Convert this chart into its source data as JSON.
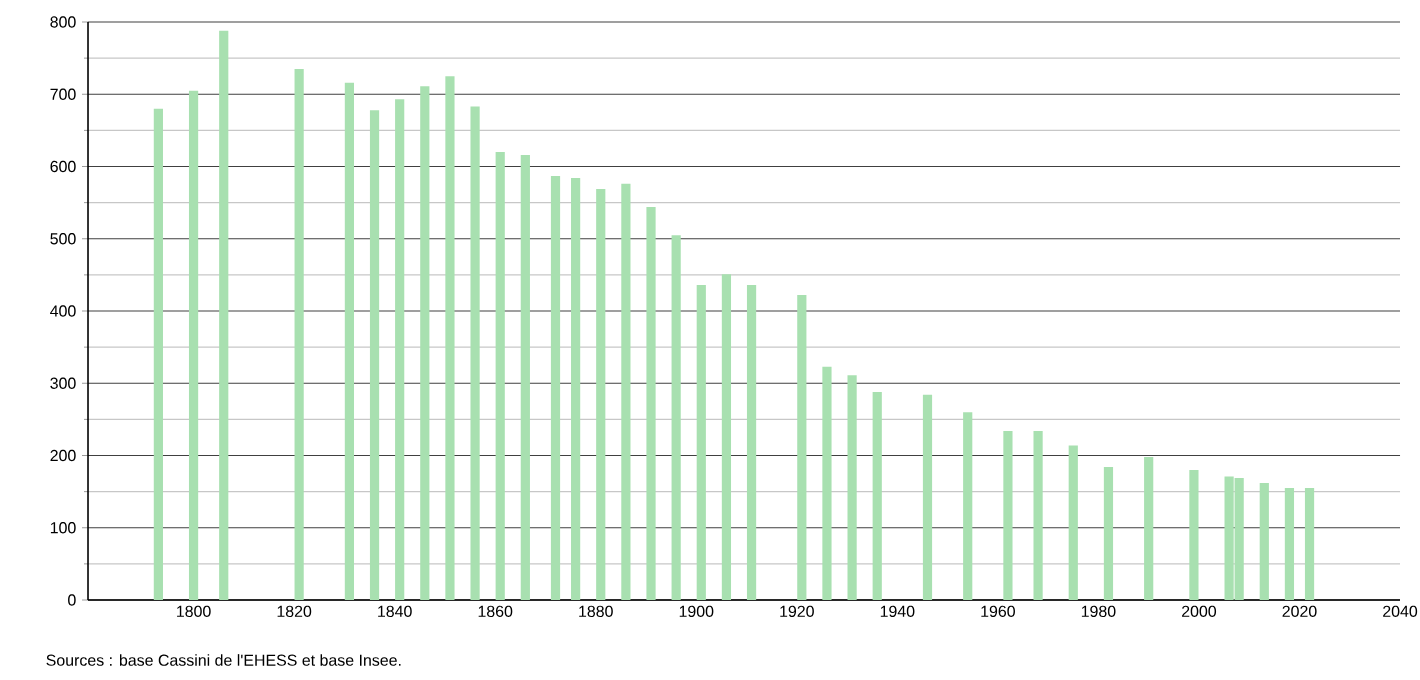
{
  "chart_data": {
    "type": "bar",
    "x": [
      1793,
      1800,
      1806,
      1821,
      1831,
      1836,
      1841,
      1846,
      1851,
      1856,
      1861,
      1866,
      1872,
      1876,
      1881,
      1886,
      1891,
      1896,
      1901,
      1906,
      1911,
      1921,
      1926,
      1931,
      1936,
      1946,
      1954,
      1962,
      1968,
      1975,
      1982,
      1990,
      1999,
      2006,
      2008,
      2013,
      2018,
      2022
    ],
    "values": [
      680,
      705,
      788,
      735,
      716,
      678,
      693,
      711,
      725,
      683,
      620,
      616,
      587,
      584,
      569,
      576,
      544,
      505,
      436,
      451,
      436,
      422,
      323,
      311,
      288,
      284,
      260,
      234,
      234,
      214,
      184,
      198,
      180,
      171,
      169,
      162,
      155,
      155
    ],
    "color": "#a8e0b0",
    "xlim": [
      1779,
      2040
    ],
    "xticks": [
      1800,
      1820,
      1840,
      1860,
      1880,
      1900,
      1920,
      1940,
      1960,
      1980,
      2000,
      2020,
      2040
    ],
    "ylim": [
      0,
      800
    ],
    "yticks": [
      0,
      {
        "value": 50,
        "label": null
      },
      100,
      {
        "value": 150,
        "label": null
      },
      200,
      {
        "value": 250,
        "label": null
      },
      300,
      {
        "value": 350,
        "label": null
      },
      400,
      {
        "value": 450,
        "label": null
      },
      500,
      {
        "value": 550,
        "label": null
      },
      600,
      {
        "value": 650,
        "label": null
      },
      700,
      {
        "value": 750,
        "label": null
      },
      800
    ],
    "grid": "y",
    "annotations": [
      "Sources : base Cassini de l'EHESS et base Insee."
    ]
  }
}
